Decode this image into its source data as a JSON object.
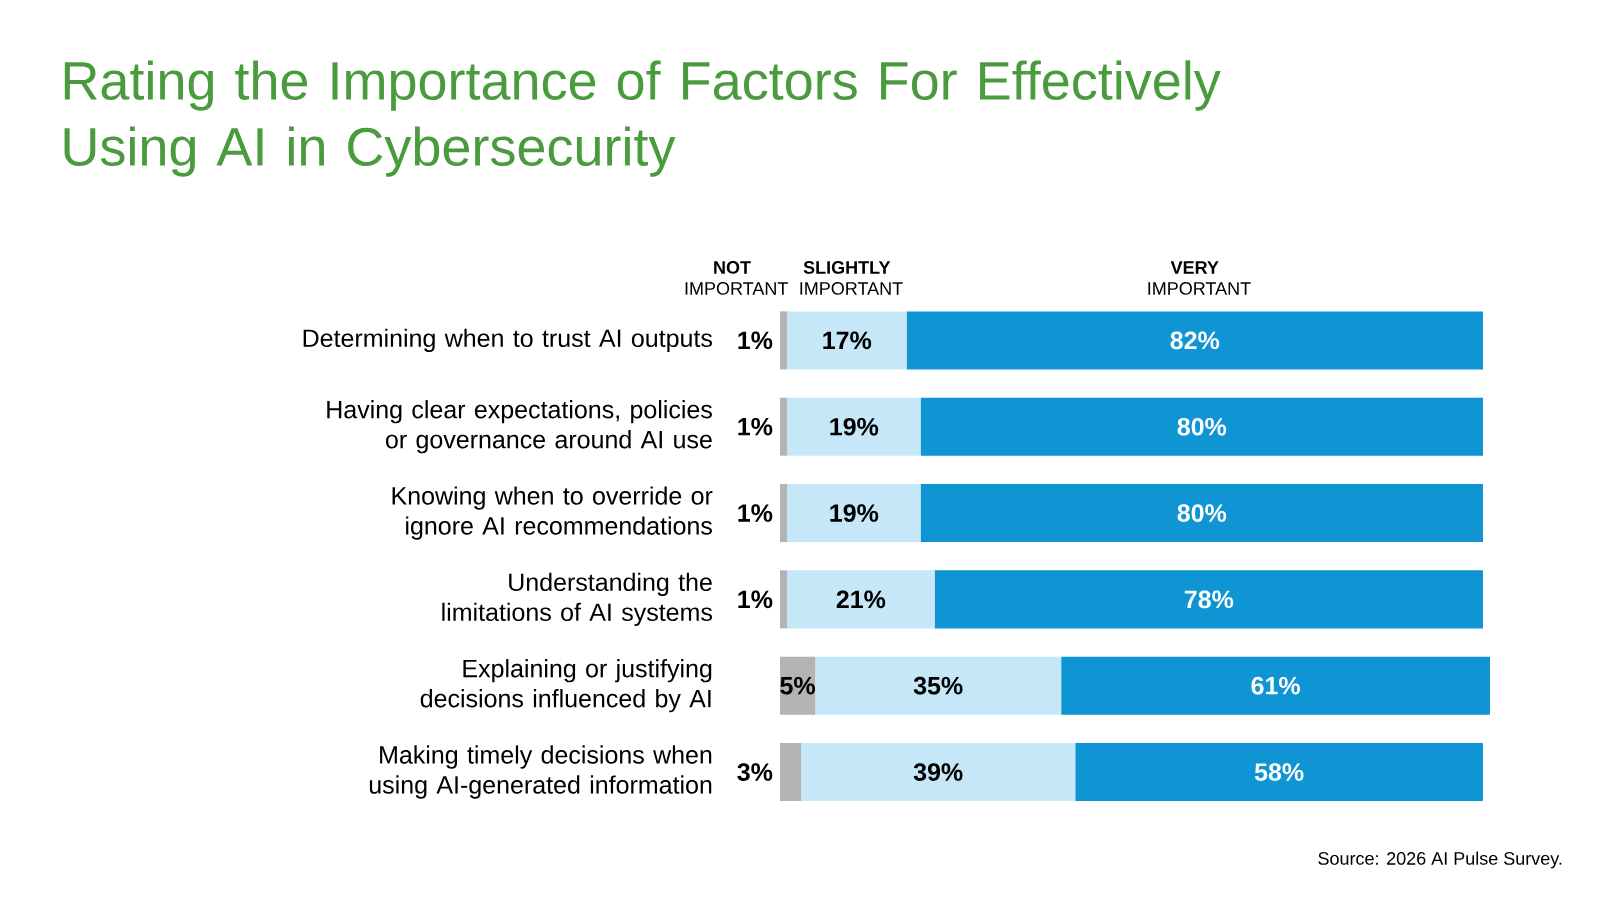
{
  "chart_data": {
    "type": "bar",
    "orientation": "horizontal",
    "stacked": true,
    "title": "Rating the Importance of Factors For Effectively Using AI in Cybersecurity",
    "categories": [
      "Determining when to trust AI outputs",
      "Having clear expectations, policies or governance around AI use",
      "Knowing when to override or ignore AI recommendations",
      "Understanding the limitations of AI systems",
      "Explaining or justifying decisions influenced by AI",
      "Making timely decisions when using AI-generated information"
    ],
    "series": [
      {
        "name": "**NOT** IMPORTANT",
        "color": "#b3b3b3",
        "values": [
          1,
          1,
          1,
          1,
          5,
          3
        ],
        "value_labels": [
          "1%",
          "1%",
          "1%",
          "1%",
          "5%",
          "3%"
        ]
      },
      {
        "name": "**SLIGHTLY** IMPORTANT",
        "color": "#c6e7f8",
        "values": [
          17,
          19,
          19,
          21,
          35,
          39
        ],
        "value_labels": [
          "17%",
          "19%",
          "19%",
          "21%",
          "35%",
          "39%"
        ]
      },
      {
        "name": "**VERY** IMPORTANT",
        "color": "#0f95d3",
        "values": [
          82,
          80,
          80,
          78,
          61,
          58
        ],
        "value_labels": [
          "82%",
          "80%",
          "80%",
          "78%",
          "61%",
          "58%"
        ]
      }
    ],
    "annotations": [
      "Source: 2026 AI Pulse Survey."
    ]
  }
}
